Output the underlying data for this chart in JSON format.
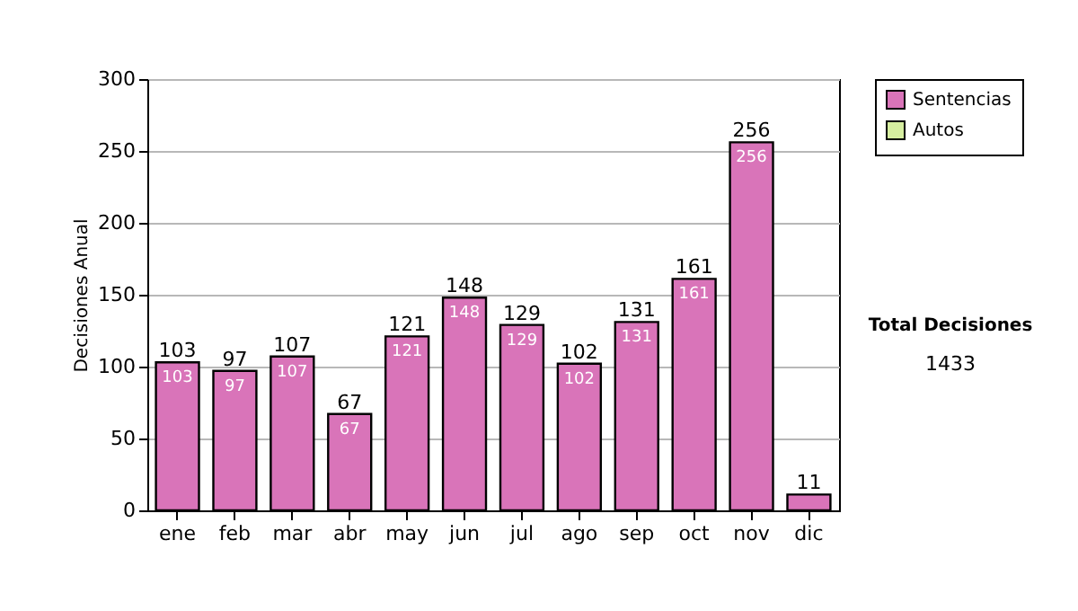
{
  "chart_data": {
    "type": "bar",
    "stacked": true,
    "ylabel": "Decisiones Anual",
    "categories": [
      "ene",
      "feb",
      "mar",
      "abr",
      "may",
      "jun",
      "jul",
      "ago",
      "sep",
      "oct",
      "nov",
      "dic"
    ],
    "series": [
      {
        "name": "Sentencias",
        "color": "#d974b9",
        "values": [
          103,
          97,
          107,
          67,
          121,
          148,
          129,
          102,
          131,
          161,
          256,
          11
        ],
        "value_labels": [
          "103",
          "97",
          "107",
          "67",
          "121",
          "148",
          "129",
          "102",
          "131",
          "161",
          "256",
          null
        ]
      },
      {
        "name": "Autos",
        "color": "#d6eea0",
        "values": [
          null,
          null,
          null,
          null,
          null,
          null,
          null,
          null,
          null,
          null,
          null,
          null
        ]
      }
    ],
    "totals": [
      "103",
      "97",
      "107",
      "67",
      "121",
      "148",
      "129",
      "102",
      "131",
      "161",
      "256",
      "11"
    ],
    "ylim": [
      0,
      300
    ],
    "yticks": [
      0,
      50,
      100,
      150,
      200,
      250,
      300
    ],
    "grid": "y",
    "legend": "right",
    "annotations": [
      "Total Decisiones",
      "1433"
    ]
  }
}
